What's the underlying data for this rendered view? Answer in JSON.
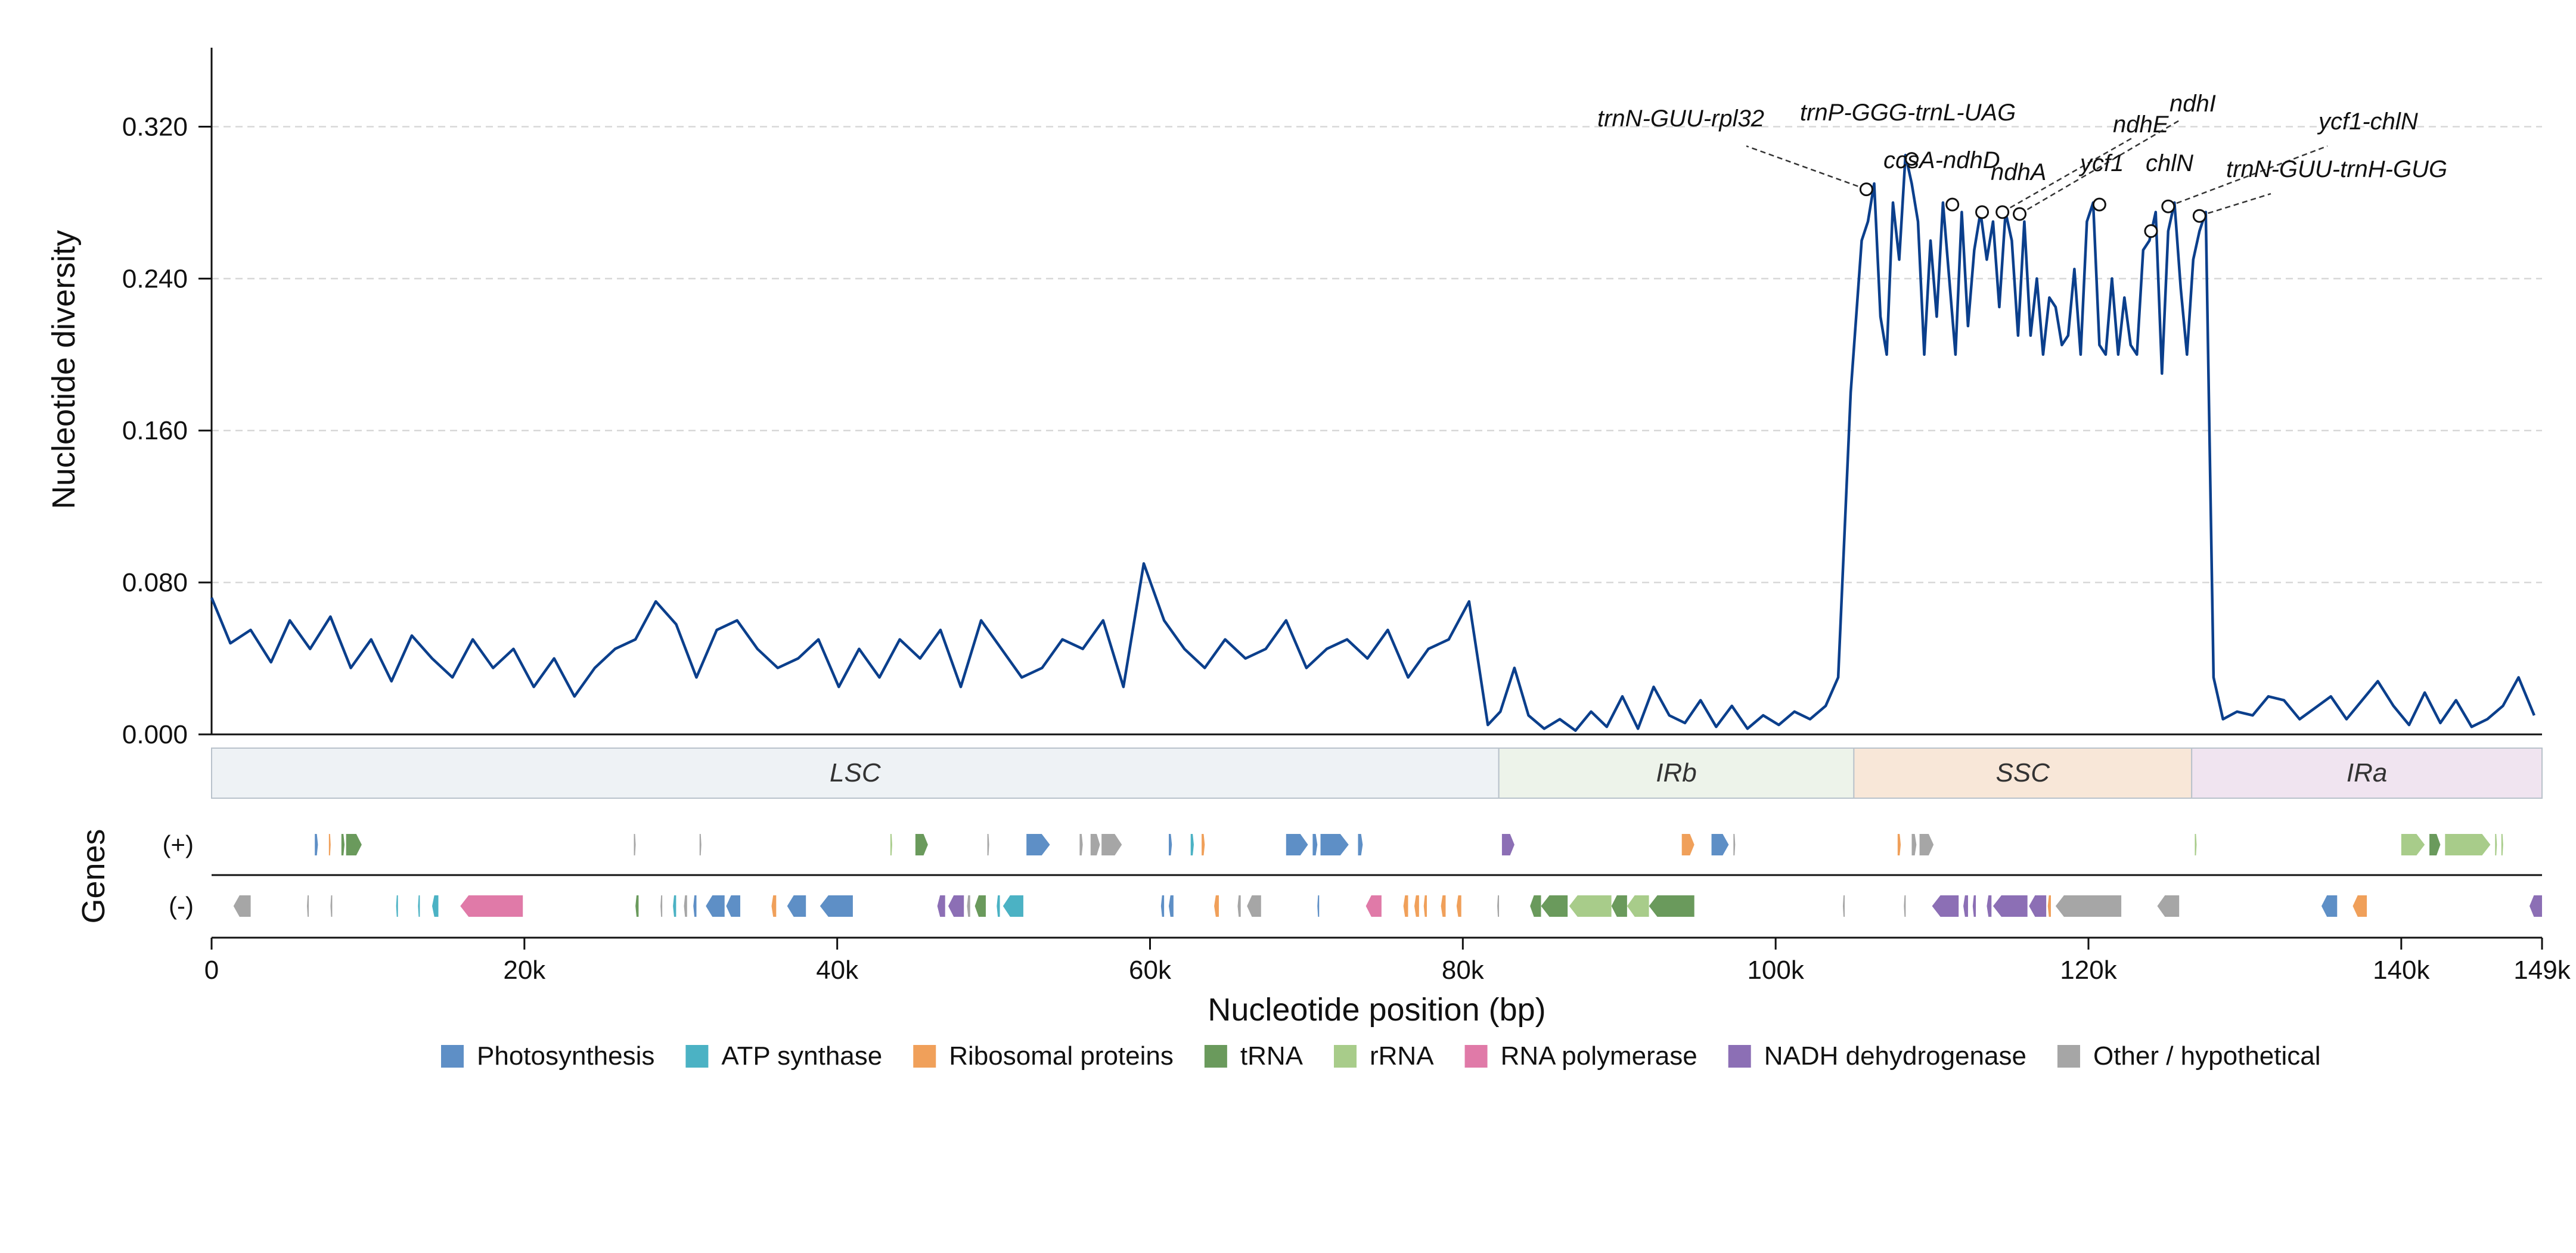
{
  "chart_data": {
    "type": "line",
    "xlabel": "Nucleotide position (bp)",
    "ylabel": "Nucleotide diversity",
    "genes_label": "Genes",
    "xlim": [
      0,
      149000
    ],
    "ylim": [
      0,
      0.36
    ],
    "y_ticks": [
      0.0,
      0.08,
      0.16,
      0.24,
      0.32
    ],
    "y_tick_labels": [
      "0.000",
      "0.080",
      "0.160",
      "0.240",
      "0.320"
    ],
    "x_ticks": [
      0,
      20000,
      40000,
      60000,
      80000,
      100000,
      120000,
      140000,
      149000
    ],
    "x_tick_labels": [
      "0",
      "20k",
      "40k",
      "60k",
      "80k",
      "100k",
      "120k",
      "140k",
      "149k"
    ],
    "grid_y": true,
    "series_color": "#0b3f8c",
    "series": [
      {
        "x": [
          0,
          1200,
          2500,
          3800,
          5000,
          6300,
          7600,
          8900,
          10200,
          11500,
          12800,
          14100,
          15400,
          16700,
          18000,
          19300,
          20600,
          21900,
          23200,
          24500,
          25800,
          27100,
          28400,
          29700,
          31000,
          32300,
          33600,
          34900,
          36200,
          37500,
          38800,
          40100,
          41400,
          42700,
          44000,
          45300,
          46600,
          47900,
          49200,
          50500,
          51800,
          53100,
          54400,
          55700,
          57000,
          58300,
          59600,
          60900,
          62200,
          63500,
          64800,
          66100,
          67400,
          68700,
          70000,
          71300,
          72600,
          73900,
          75200,
          76500,
          77800,
          79100,
          80400,
          81600,
          82400,
          83300,
          84200,
          85200,
          86200,
          87200,
          88200,
          89200,
          90200,
          91200,
          92200,
          93200,
          94200,
          95200,
          96200,
          97200,
          98200,
          99200,
          100200,
          101200,
          102200,
          103200,
          104000,
          104800,
          105500,
          105900,
          106300,
          106700,
          107100,
          107500,
          107900,
          108300,
          108700,
          109100,
          109500,
          109900,
          110300,
          110700,
          111100,
          111500,
          111900,
          112300,
          112700,
          113100,
          113500,
          113900,
          114300,
          114700,
          115100,
          115500,
          115900,
          116300,
          116700,
          117100,
          117500,
          117900,
          118300,
          118700,
          119100,
          119500,
          119900,
          120300,
          120700,
          121100,
          121500,
          121900,
          122300,
          122700,
          123100,
          123500,
          123900,
          124300,
          124700,
          125100,
          125500,
          125900,
          126300,
          126700,
          127100,
          127500,
          128000,
          128600,
          129500,
          130500,
          131500,
          132500,
          133500,
          134500,
          135500,
          136500,
          137500,
          138500,
          139500,
          140500,
          141500,
          142500,
          143500,
          144500,
          145500,
          146500,
          147500,
          148500
        ],
        "y": [
          0.072,
          0.048,
          0.055,
          0.038,
          0.06,
          0.045,
          0.062,
          0.035,
          0.05,
          0.028,
          0.052,
          0.04,
          0.03,
          0.05,
          0.035,
          0.045,
          0.025,
          0.04,
          0.02,
          0.035,
          0.045,
          0.05,
          0.07,
          0.058,
          0.03,
          0.055,
          0.06,
          0.045,
          0.035,
          0.04,
          0.05,
          0.025,
          0.045,
          0.03,
          0.05,
          0.04,
          0.055,
          0.025,
          0.06,
          0.045,
          0.03,
          0.035,
          0.05,
          0.045,
          0.06,
          0.025,
          0.09,
          0.06,
          0.045,
          0.035,
          0.05,
          0.04,
          0.045,
          0.06,
          0.035,
          0.045,
          0.05,
          0.04,
          0.055,
          0.03,
          0.045,
          0.05,
          0.07,
          0.005,
          0.012,
          0.035,
          0.01,
          0.003,
          0.008,
          0.002,
          0.012,
          0.004,
          0.02,
          0.003,
          0.025,
          0.01,
          0.006,
          0.018,
          0.004,
          0.015,
          0.003,
          0.01,
          0.005,
          0.012,
          0.008,
          0.015,
          0.03,
          0.18,
          0.26,
          0.27,
          0.29,
          0.22,
          0.2,
          0.28,
          0.25,
          0.305,
          0.29,
          0.27,
          0.2,
          0.26,
          0.22,
          0.28,
          0.24,
          0.2,
          0.275,
          0.215,
          0.255,
          0.275,
          0.25,
          0.27,
          0.225,
          0.275,
          0.26,
          0.21,
          0.27,
          0.21,
          0.24,
          0.2,
          0.23,
          0.225,
          0.205,
          0.21,
          0.245,
          0.2,
          0.27,
          0.28,
          0.205,
          0.2,
          0.24,
          0.2,
          0.23,
          0.205,
          0.2,
          0.255,
          0.26,
          0.275,
          0.19,
          0.265,
          0.28,
          0.235,
          0.2,
          0.25,
          0.265,
          0.275,
          0.03,
          0.008,
          0.012,
          0.01,
          0.02,
          0.018,
          0.008,
          0.014,
          0.02,
          0.008,
          0.018,
          0.028,
          0.015,
          0.005,
          0.022,
          0.006,
          0.018,
          0.004,
          0.008,
          0.015,
          0.03,
          0.01
        ]
      }
    ],
    "peaks": [
      {
        "label": "trnN-GUU-rpl32",
        "x": 105800,
        "y": 0.287
      },
      {
        "label": "trnP-GGG-trnL-UAG",
        "x": 108700,
        "y": 0.303
      },
      {
        "label": "ccsA-ndhD",
        "x": 111300,
        "y": 0.279
      },
      {
        "label": "ndhA",
        "x": 113200,
        "y": 0.275
      },
      {
        "label": "ndhE",
        "x": 114500,
        "y": 0.275
      },
      {
        "label": "ndhI",
        "x": 115600,
        "y": 0.274
      },
      {
        "label": "ycf1",
        "x": 120700,
        "y": 0.279
      },
      {
        "label": "chlN",
        "x": 124000,
        "y": 0.265
      },
      {
        "label": "ycf1-chlN",
        "x": 125100,
        "y": 0.278
      },
      {
        "label": "trnN-GUU-trnH-GUG",
        "x": 127100,
        "y": 0.273
      }
    ],
    "regions": [
      {
        "name": "LSC",
        "start": 0,
        "end": 82300,
        "color": "#eef2f5"
      },
      {
        "name": "IRb",
        "start": 82300,
        "end": 105000,
        "color": "#edf3ea"
      },
      {
        "name": "SSC",
        "start": 105000,
        "end": 126600,
        "color": "#f8e7d8"
      },
      {
        "name": "IRa",
        "start": 126600,
        "end": 149000,
        "color": "#f0e4f0"
      }
    ],
    "strand_labels": [
      "(+)",
      "(-)"
    ],
    "gene_categories": [
      {
        "name": "Photosynthesis",
        "color": "#5e8fc6"
      },
      {
        "name": "ATP synthase",
        "color": "#4bb2c4"
      },
      {
        "name": "Ribosomal proteins",
        "color": "#f0a05a"
      },
      {
        "name": "tRNA",
        "color": "#6a9a5c"
      },
      {
        "name": "rRNA",
        "color": "#a8cc8a"
      },
      {
        "name": "RNA polymerase",
        "color": "#e07aa8"
      },
      {
        "name": "NADH dehydrogenase",
        "color": "#8c6fb5"
      },
      {
        "name": "Other / hypothetical",
        "color": "#a6a6a6"
      }
    ],
    "genes_plus": [
      {
        "s": 6600,
        "e": 6800,
        "c": 0
      },
      {
        "s": 7500,
        "e": 7600,
        "c": 2
      },
      {
        "s": 8300,
        "e": 8500,
        "c": 3
      },
      {
        "s": 8600,
        "e": 9600,
        "c": 3
      },
      {
        "s": 27000,
        "e": 27100,
        "c": 7
      },
      {
        "s": 31200,
        "e": 31300,
        "c": 7
      },
      {
        "s": 43400,
        "e": 43500,
        "c": 4
      },
      {
        "s": 45000,
        "e": 45800,
        "c": 3
      },
      {
        "s": 49600,
        "e": 49700,
        "c": 7
      },
      {
        "s": 52100,
        "e": 53600,
        "c": 0
      },
      {
        "s": 55500,
        "e": 55700,
        "c": 7
      },
      {
        "s": 56200,
        "e": 56800,
        "c": 7
      },
      {
        "s": 56900,
        "e": 58200,
        "c": 7
      },
      {
        "s": 61200,
        "e": 61400,
        "c": 0
      },
      {
        "s": 62600,
        "e": 62800,
        "c": 1
      },
      {
        "s": 63300,
        "e": 63500,
        "c": 2
      },
      {
        "s": 68700,
        "e": 70100,
        "c": 0
      },
      {
        "s": 70400,
        "e": 70700,
        "c": 0
      },
      {
        "s": 70900,
        "e": 72700,
        "c": 0
      },
      {
        "s": 73300,
        "e": 73600,
        "c": 0
      },
      {
        "s": 82500,
        "e": 83300,
        "c": 6
      },
      {
        "s": 94000,
        "e": 94800,
        "c": 2
      },
      {
        "s": 95900,
        "e": 97000,
        "c": 0
      },
      {
        "s": 97300,
        "e": 97400,
        "c": 7
      },
      {
        "s": 107800,
        "e": 108000,
        "c": 2
      },
      {
        "s": 108700,
        "e": 109000,
        "c": 7
      },
      {
        "s": 109200,
        "e": 110100,
        "c": 7
      },
      {
        "s": 126800,
        "e": 126900,
        "c": 4
      },
      {
        "s": 140000,
        "e": 141500,
        "c": 4
      },
      {
        "s": 141800,
        "e": 142500,
        "c": 3
      },
      {
        "s": 142800,
        "e": 145700,
        "c": 4
      },
      {
        "s": 146000,
        "e": 146100,
        "c": 4
      },
      {
        "s": 146400,
        "e": 146500,
        "c": 4
      }
    ],
    "genes_minus": [
      {
        "s": 1400,
        "e": 2500,
        "c": 7
      },
      {
        "s": 6100,
        "e": 6200,
        "c": 7
      },
      {
        "s": 7600,
        "e": 7700,
        "c": 7
      },
      {
        "s": 11800,
        "e": 11900,
        "c": 1
      },
      {
        "s": 13200,
        "e": 13300,
        "c": 1
      },
      {
        "s": 14100,
        "e": 14500,
        "c": 1
      },
      {
        "s": 15900,
        "e": 19900,
        "c": 5
      },
      {
        "s": 27100,
        "e": 27300,
        "c": 3
      },
      {
        "s": 28700,
        "e": 28800,
        "c": 7
      },
      {
        "s": 29500,
        "e": 29700,
        "c": 1
      },
      {
        "s": 30200,
        "e": 30400,
        "c": 7
      },
      {
        "s": 30800,
        "e": 31000,
        "c": 0
      },
      {
        "s": 31600,
        "e": 32800,
        "c": 0
      },
      {
        "s": 32900,
        "e": 33800,
        "c": 0
      },
      {
        "s": 35800,
        "e": 36100,
        "c": 2
      },
      {
        "s": 36800,
        "e": 38000,
        "c": 0
      },
      {
        "s": 38900,
        "e": 41000,
        "c": 0
      },
      {
        "s": 46400,
        "e": 46900,
        "c": 6
      },
      {
        "s": 47100,
        "e": 48100,
        "c": 6
      },
      {
        "s": 48300,
        "e": 48500,
        "c": 7
      },
      {
        "s": 48800,
        "e": 49500,
        "c": 3
      },
      {
        "s": 50200,
        "e": 50400,
        "c": 1
      },
      {
        "s": 50600,
        "e": 51900,
        "c": 1
      },
      {
        "s": 60700,
        "e": 60900,
        "c": 0
      },
      {
        "s": 61200,
        "e": 61500,
        "c": 0
      },
      {
        "s": 64100,
        "e": 64400,
        "c": 2
      },
      {
        "s": 65600,
        "e": 65800,
        "c": 7
      },
      {
        "s": 66200,
        "e": 67100,
        "c": 7
      },
      {
        "s": 70700,
        "e": 70800,
        "c": 0
      },
      {
        "s": 73800,
        "e": 74800,
        "c": 5
      },
      {
        "s": 76200,
        "e": 76500,
        "c": 2
      },
      {
        "s": 76900,
        "e": 77200,
        "c": 2
      },
      {
        "s": 77500,
        "e": 77700,
        "c": 2
      },
      {
        "s": 78600,
        "e": 78900,
        "c": 2
      },
      {
        "s": 79600,
        "e": 79900,
        "c": 2
      },
      {
        "s": 82200,
        "e": 82300,
        "c": 7
      },
      {
        "s": 84300,
        "e": 85000,
        "c": 3
      },
      {
        "s": 85000,
        "e": 86700,
        "c": 3
      },
      {
        "s": 86800,
        "e": 89500,
        "c": 4
      },
      {
        "s": 89500,
        "e": 90500,
        "c": 3
      },
      {
        "s": 90500,
        "e": 91900,
        "c": 4
      },
      {
        "s": 91900,
        "e": 94800,
        "c": 3
      },
      {
        "s": 104300,
        "e": 104400,
        "c": 7
      },
      {
        "s": 108200,
        "e": 108300,
        "c": 7
      },
      {
        "s": 110000,
        "e": 111700,
        "c": 6
      },
      {
        "s": 112000,
        "e": 112300,
        "c": 6
      },
      {
        "s": 112600,
        "e": 112800,
        "c": 6
      },
      {
        "s": 113500,
        "e": 113800,
        "c": 6
      },
      {
        "s": 113900,
        "e": 116100,
        "c": 6
      },
      {
        "s": 116200,
        "e": 117300,
        "c": 6
      },
      {
        "s": 117400,
        "e": 117600,
        "c": 2
      },
      {
        "s": 117900,
        "e": 122100,
        "c": 7
      },
      {
        "s": 124400,
        "e": 125800,
        "c": 7
      },
      {
        "s": 134900,
        "e": 135900,
        "c": 0
      },
      {
        "s": 136900,
        "e": 137800,
        "c": 2
      },
      {
        "s": 148200,
        "e": 149000,
        "c": 6
      }
    ]
  }
}
